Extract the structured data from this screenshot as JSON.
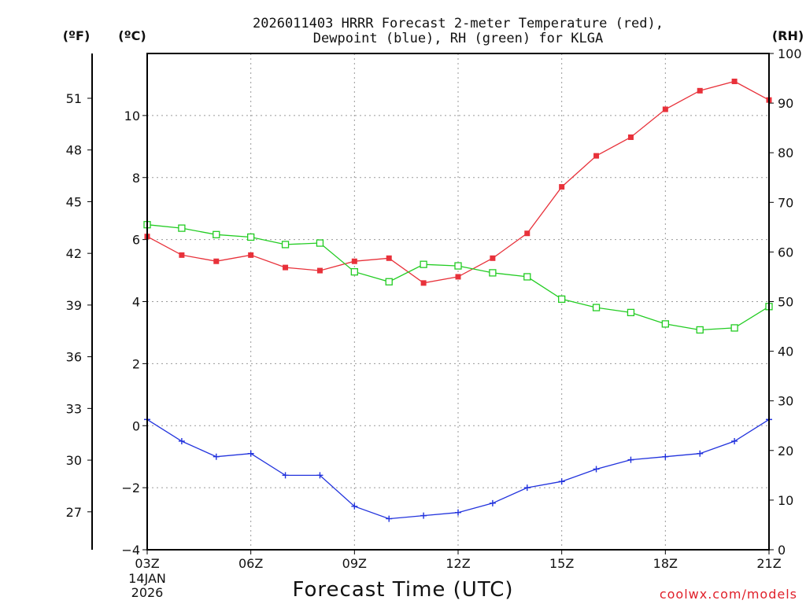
{
  "chart_data": {
    "type": "line",
    "title_line1": "2026011403 HRRR Forecast 2-meter Temperature (red),",
    "title_line2": "Dewpoint (blue), RH (green) for KLGA",
    "xlabel": "Forecast Time (UTC)",
    "credit": "coolwx.com/models",
    "unit_f": "(ºF)",
    "unit_c": "(ºC)",
    "unit_rh": "(RH)",
    "date_line1": "14JAN",
    "date_line2": "2026",
    "x_range": [
      3,
      21
    ],
    "x_ticks": [
      {
        "value": 3,
        "label": "03Z"
      },
      {
        "value": 6,
        "label": "06Z"
      },
      {
        "value": 9,
        "label": "09Z"
      },
      {
        "value": 12,
        "label": "12Z"
      },
      {
        "value": 15,
        "label": "15Z"
      },
      {
        "value": 18,
        "label": "18Z"
      },
      {
        "value": 21,
        "label": "21Z"
      }
    ],
    "c_range": [
      -4,
      12
    ],
    "c_ticks": [
      -4,
      -2,
      0,
      2,
      4,
      6,
      8,
      10
    ],
    "c_tick_labels": [
      "−4",
      "−2",
      "0",
      "2",
      "4",
      "6",
      "8",
      "10"
    ],
    "f_ticks": [
      27,
      30,
      33,
      36,
      39,
      42,
      45,
      48,
      51
    ],
    "rh_range": [
      0,
      100
    ],
    "rh_ticks": [
      0,
      10,
      20,
      30,
      40,
      50,
      60,
      70,
      80,
      90,
      100
    ],
    "hours": [
      3,
      4,
      5,
      6,
      7,
      8,
      9,
      10,
      11,
      12,
      13,
      14,
      15,
      16,
      17,
      18,
      19,
      20,
      21
    ],
    "series": [
      {
        "name": "Temperature",
        "axis": "C",
        "color": "#e8313a",
        "marker": "filled-square",
        "values": [
          6.1,
          5.5,
          5.3,
          5.5,
          5.1,
          5.0,
          5.3,
          5.4,
          4.6,
          4.8,
          5.4,
          6.2,
          7.7,
          8.7,
          9.3,
          10.2,
          10.8,
          11.1,
          10.5
        ]
      },
      {
        "name": "Dewpoint",
        "axis": "C",
        "color": "#2233dd",
        "marker": "plus",
        "values": [
          0.2,
          -0.5,
          -1.0,
          -0.9,
          -1.6,
          -1.6,
          -2.6,
          -3.0,
          -2.9,
          -2.8,
          -2.5,
          -2.0,
          -1.8,
          -1.4,
          -1.1,
          -1.0,
          -0.9,
          -0.5,
          0.2
        ]
      },
      {
        "name": "RH",
        "axis": "RH",
        "color": "#22cc22",
        "marker": "open-square",
        "values": [
          65.5,
          64.8,
          63.5,
          63.0,
          61.5,
          61.8,
          56.0,
          54.0,
          57.5,
          57.2,
          55.8,
          55.0,
          50.5,
          48.8,
          47.8,
          45.5,
          44.3,
          44.7,
          49.0
        ]
      }
    ]
  }
}
